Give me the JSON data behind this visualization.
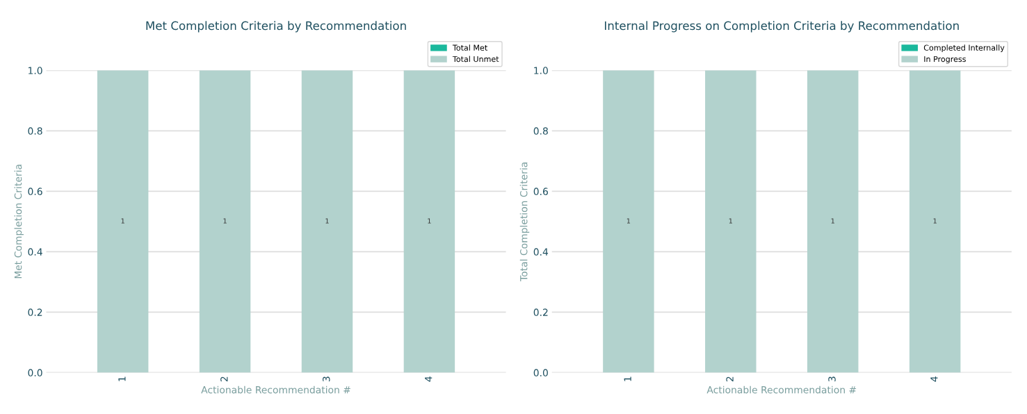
{
  "chart_data": [
    {
      "type": "bar",
      "title": "Met Completion Criteria by Recommendation",
      "xlabel": "Actionable Recommendation #",
      "ylabel": "Met Completion Criteria",
      "categories": [
        "1",
        "2",
        "3",
        "4"
      ],
      "stacked": true,
      "series": [
        {
          "name": "Total Met",
          "color": "#1ab89c",
          "values": [
            0,
            0,
            0,
            0
          ]
        },
        {
          "name": "Total Unmet",
          "color": "#b2d2cd",
          "values": [
            1,
            1,
            1,
            1
          ],
          "value_labels": [
            "1",
            "1",
            "1",
            "1"
          ]
        }
      ],
      "ylim": [
        0,
        1.0
      ],
      "yticks": [
        {
          "value": 0,
          "label": "0.0"
        },
        {
          "value": 0.2,
          "label": "0.2"
        },
        {
          "value": 0.4,
          "label": "0.4"
        },
        {
          "value": 0.6,
          "label": "0.6"
        },
        {
          "value": 0.8,
          "label": "0.8"
        },
        {
          "value": 1.0,
          "label": "1.0"
        }
      ],
      "grid": "y",
      "legend": "top right"
    },
    {
      "type": "bar",
      "title": "Internal Progress on Completion Criteria by Recommendation",
      "xlabel": "Actionable Recommendation #",
      "ylabel": "Total Completion Criteria",
      "categories": [
        "1",
        "2",
        "3",
        "4"
      ],
      "stacked": true,
      "series": [
        {
          "name": "Completed Internally",
          "color": "#1ab89c",
          "values": [
            0,
            0,
            0,
            0
          ]
        },
        {
          "name": "In Progress",
          "color": "#b2d2cd",
          "values": [
            1,
            1,
            1,
            1
          ],
          "value_labels": [
            "1",
            "1",
            "1",
            "1"
          ]
        }
      ],
      "ylim": [
        0,
        1.0
      ],
      "yticks": [
        {
          "value": 0,
          "label": "0.0"
        },
        {
          "value": 0.2,
          "label": "0.2"
        },
        {
          "value": 0.4,
          "label": "0.4"
        },
        {
          "value": 0.6,
          "label": "0.6"
        },
        {
          "value": 0.8,
          "label": "0.8"
        },
        {
          "value": 1.0,
          "label": "1.0"
        }
      ],
      "grid": "y",
      "legend": "top right"
    }
  ]
}
